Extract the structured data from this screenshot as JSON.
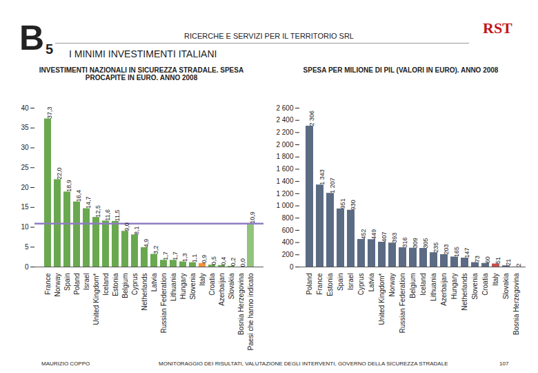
{
  "header": {
    "badge_letter": "B",
    "badge_number": "5",
    "company": "RICERCHE E SERVIZI PER IL TERRITORIO SRL",
    "section": "I MINIMI INVESTIMENTI ITALIANI",
    "logo": "RST"
  },
  "footer": {
    "author": "MAURIZIO COPPO",
    "caption": "MONITORAGGIO DEI RISULTATI, VALUTAZIONE DEGLI INTERVENTI, GOVERNO DELLA SICUREZZA STRADALE",
    "page": "107"
  },
  "chart_data": [
    {
      "type": "bar",
      "title": "INVESTIMENTI NAZIONALI IN SICUREZZA STRADALE. SPESA PROCAPITE IN EURO. ANNO 2008",
      "categories": [
        "France",
        "Norway",
        "Spain",
        "Poland",
        "Israel",
        "United Kingdom*",
        "Iceland",
        "Estonia",
        "Belgium",
        "Cyprus",
        "Netherlands",
        "Latvia",
        "Russian Federation",
        "Lithuania",
        "Hungary",
        "Slovenia",
        "Italy",
        "Croatia",
        "Azerbaijan",
        "Slovakia",
        "Bosnia Herzegovina",
        "Paesi che hanno indicato"
      ],
      "values": [
        37.3,
        22.0,
        18.9,
        16.4,
        14.7,
        12.5,
        11.6,
        11.5,
        9.0,
        8.1,
        4.9,
        3.2,
        1.7,
        1.7,
        1.3,
        1.1,
        0.9,
        0.5,
        0.4,
        0.2,
        0.0,
        10.9
      ],
      "value_labels": [
        "37,3",
        "22,0",
        "18,9",
        "16,4",
        "14,7",
        "12,5",
        "11,6",
        "11,5",
        "9,0",
        "8,1",
        "4,9",
        "3,2",
        "1,7",
        "1,7",
        "1,3",
        "1,1",
        "0,9",
        "0,5",
        "0,4",
        "0,2",
        "0,0",
        "10,9"
      ],
      "colors": [
        "#6aa84f",
        "#6aa84f",
        "#6aa84f",
        "#6aa84f",
        "#6aa84f",
        "#6aa84f",
        "#6aa84f",
        "#6aa84f",
        "#6aa84f",
        "#6aa84f",
        "#6aa84f",
        "#6aa84f",
        "#6aa84f",
        "#6aa84f",
        "#6aa84f",
        "#6aa84f",
        "#f0913a",
        "#6aa84f",
        "#6aa84f",
        "#6aa84f",
        "#6aa84f",
        "#93c47d"
      ],
      "average_line": {
        "value": 10.9,
        "color": "#8e7cc3"
      },
      "ylim": [
        0,
        40
      ],
      "yticks": [
        0,
        5,
        10,
        15,
        20,
        25,
        30,
        35,
        40
      ],
      "grid": false,
      "data_labels": true
    },
    {
      "type": "bar",
      "title": "SPESA PER MILIONE DI PIL (VALORI IN EURO). ANNO 2008",
      "categories": [
        "Poland",
        "France",
        "Estonia",
        "Spain",
        "Israel",
        "Cyprus",
        "Latvia",
        "United Kingdom*",
        "Norway",
        "Russian Federation",
        "Belgium",
        "Iceland",
        "Lithuania",
        "Azerbaijan",
        "Hungary",
        "Netherlands",
        "Slovenia",
        "Croatia",
        "Italy",
        "Slovakia",
        "Bosnia Herzegovina"
      ],
      "values": [
        2306,
        1343,
        1207,
        951,
        930,
        452,
        449,
        407,
        393,
        316,
        309,
        305,
        235,
        203,
        165,
        147,
        73,
        60,
        51,
        21,
        2
      ],
      "value_labels": [
        "2 306",
        "1 343",
        "1 207",
        "951",
        "930",
        "452",
        "449",
        "407",
        "393",
        "316",
        "309",
        "305",
        "235",
        "203",
        "165",
        "147",
        "73",
        "60",
        "51",
        "21",
        "2"
      ],
      "colors": [
        "#5b6b84",
        "#5b6b84",
        "#5b6b84",
        "#5b6b84",
        "#5b6b84",
        "#5b6b84",
        "#5b6b84",
        "#5b6b84",
        "#5b6b84",
        "#5b6b84",
        "#5b6b84",
        "#5b6b84",
        "#5b6b84",
        "#5b6b84",
        "#5b6b84",
        "#5b6b84",
        "#5b6b84",
        "#5b6b84",
        "#c0504d",
        "#5b6b84",
        "#5b6b84"
      ],
      "ylim": [
        0,
        2600
      ],
      "yticks": [
        0,
        200,
        400,
        600,
        800,
        {
          "value": 1000,
          "label": "1 000"
        },
        {
          "value": 1200,
          "label": "1 200"
        },
        {
          "value": 1400,
          "label": "1 400"
        },
        {
          "value": 1600,
          "label": "1 600"
        },
        {
          "value": 1800,
          "label": "1 800"
        },
        {
          "value": 2000,
          "label": "2 000"
        },
        {
          "value": 2200,
          "label": "2 200"
        },
        {
          "value": 2400,
          "label": "2 400"
        },
        {
          "value": 2600,
          "label": "2 600"
        }
      ],
      "grid": false,
      "data_labels": true
    }
  ]
}
